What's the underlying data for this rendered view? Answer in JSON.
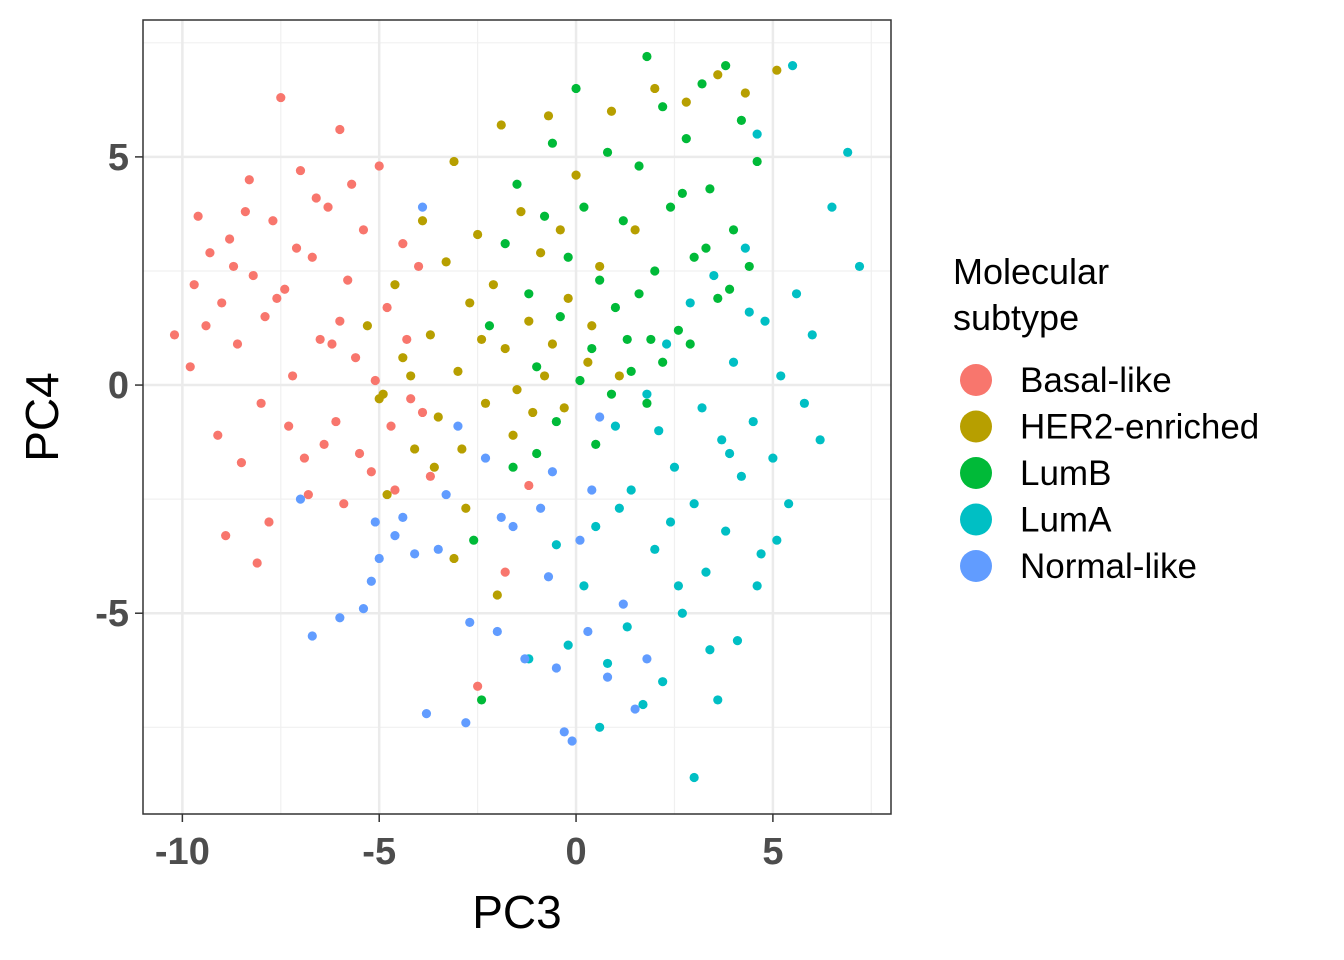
{
  "chart_data": {
    "type": "scatter",
    "title": "",
    "xlabel": "PC3",
    "ylabel": "PC4",
    "xlim": [
      -11.0,
      8.0
    ],
    "ylim": [
      -9.4,
      8.0
    ],
    "x_ticks": [
      -10,
      -5,
      0,
      5
    ],
    "x_tick_labels": [
      "-10",
      "-5",
      "0",
      "5"
    ],
    "y_ticks": [
      -5,
      0,
      5
    ],
    "y_tick_labels": [
      "-5",
      "0",
      "5"
    ],
    "grid": true,
    "legend": {
      "title_lines": [
        "Molecular",
        "subtype"
      ],
      "placement": "right"
    },
    "series": [
      {
        "name": "Basal-like",
        "color": "#F8766D",
        "points": [
          [
            -9.6,
            3.7
          ],
          [
            -9.3,
            2.9
          ],
          [
            -9.0,
            1.8
          ],
          [
            -8.8,
            3.2
          ],
          [
            -8.6,
            0.9
          ],
          [
            -8.3,
            4.5
          ],
          [
            -8.2,
            2.4
          ],
          [
            -8.0,
            -0.4
          ],
          [
            -7.9,
            1.5
          ],
          [
            -7.7,
            3.6
          ],
          [
            -7.5,
            6.3
          ],
          [
            -7.4,
            2.1
          ],
          [
            -7.2,
            0.2
          ],
          [
            -7.0,
            4.7
          ],
          [
            -6.9,
            -1.6
          ],
          [
            -6.7,
            2.8
          ],
          [
            -6.5,
            1.0
          ],
          [
            -6.3,
            3.9
          ],
          [
            -6.1,
            -0.8
          ],
          [
            -6.0,
            5.6
          ],
          [
            -5.8,
            2.3
          ],
          [
            -5.6,
            0.6
          ],
          [
            -5.4,
            3.4
          ],
          [
            -5.2,
            -1.9
          ],
          [
            -5.0,
            4.8
          ],
          [
            -4.8,
            1.7
          ],
          [
            -4.6,
            -2.3
          ],
          [
            -4.4,
            3.1
          ],
          [
            -4.2,
            -0.3
          ],
          [
            -4.0,
            2.6
          ],
          [
            -9.8,
            0.4
          ],
          [
            -9.1,
            -1.1
          ],
          [
            -8.9,
            -3.3
          ],
          [
            -8.5,
            -1.7
          ],
          [
            -8.1,
            -3.9
          ],
          [
            -7.8,
            -3.0
          ],
          [
            -7.3,
            -0.9
          ],
          [
            -6.8,
            -2.4
          ],
          [
            -6.4,
            -1.3
          ],
          [
            -6.2,
            0.9
          ],
          [
            -5.9,
            -2.6
          ],
          [
            -5.5,
            -1.5
          ],
          [
            -5.1,
            0.1
          ],
          [
            -4.7,
            -0.9
          ],
          [
            -4.3,
            1.0
          ],
          [
            -3.9,
            -0.6
          ],
          [
            -3.7,
            -2.0
          ],
          [
            -2.5,
            -6.6
          ],
          [
            -1.8,
            -4.1
          ],
          [
            -1.2,
            -2.2
          ],
          [
            -10.2,
            1.1
          ],
          [
            -9.7,
            2.2
          ],
          [
            -9.4,
            1.3
          ],
          [
            -8.7,
            2.6
          ],
          [
            -8.4,
            3.8
          ],
          [
            -7.6,
            1.9
          ],
          [
            -7.1,
            3.0
          ],
          [
            -6.6,
            4.1
          ],
          [
            -6.0,
            1.4
          ],
          [
            -5.7,
            4.4
          ]
        ]
      },
      {
        "name": "HER2-enriched",
        "color": "#B79F00",
        "points": [
          [
            -5.3,
            1.3
          ],
          [
            -4.9,
            -0.2
          ],
          [
            -4.6,
            2.2
          ],
          [
            -4.4,
            0.6
          ],
          [
            -4.1,
            -1.4
          ],
          [
            -3.9,
            3.6
          ],
          [
            -3.7,
            1.1
          ],
          [
            -3.5,
            -0.7
          ],
          [
            -3.3,
            2.7
          ],
          [
            -3.1,
            4.9
          ],
          [
            -3.0,
            0.3
          ],
          [
            -2.8,
            -2.7
          ],
          [
            -2.7,
            1.8
          ],
          [
            -2.5,
            3.3
          ],
          [
            -2.3,
            -0.4
          ],
          [
            -2.1,
            2.2
          ],
          [
            -1.9,
            5.7
          ],
          [
            -1.8,
            0.8
          ],
          [
            -1.6,
            -1.1
          ],
          [
            -1.4,
            3.8
          ],
          [
            -1.2,
            1.4
          ],
          [
            -1.1,
            -0.6
          ],
          [
            -0.9,
            2.9
          ],
          [
            -0.7,
            5.9
          ],
          [
            -0.6,
            0.9
          ],
          [
            -0.4,
            3.4
          ],
          [
            -0.2,
            1.9
          ],
          [
            0.0,
            4.6
          ],
          [
            0.3,
            0.5
          ],
          [
            0.6,
            2.6
          ],
          [
            0.9,
            6.0
          ],
          [
            1.5,
            3.4
          ],
          [
            2.0,
            6.5
          ],
          [
            2.8,
            6.2
          ],
          [
            3.6,
            6.8
          ],
          [
            4.3,
            6.4
          ],
          [
            5.1,
            6.9
          ],
          [
            -3.1,
            -3.8
          ],
          [
            -2.0,
            -4.6
          ],
          [
            -4.8,
            -2.4
          ],
          [
            -5.0,
            -0.3
          ],
          [
            -4.2,
            0.2
          ],
          [
            -3.6,
            -1.8
          ],
          [
            -2.9,
            -1.4
          ],
          [
            -2.4,
            1.0
          ],
          [
            -1.5,
            -0.1
          ],
          [
            -0.8,
            0.2
          ],
          [
            -0.3,
            -0.5
          ],
          [
            0.4,
            1.3
          ],
          [
            1.1,
            0.2
          ]
        ]
      },
      {
        "name": "LumB",
        "color": "#00BA38",
        "points": [
          [
            -2.2,
            1.3
          ],
          [
            -1.8,
            3.1
          ],
          [
            -1.5,
            4.4
          ],
          [
            -1.2,
            2.0
          ],
          [
            -1.0,
            0.4
          ],
          [
            -0.8,
            3.7
          ],
          [
            -0.6,
            5.3
          ],
          [
            -0.4,
            1.5
          ],
          [
            -0.2,
            2.8
          ],
          [
            0.0,
            6.5
          ],
          [
            0.2,
            3.9
          ],
          [
            0.4,
            0.8
          ],
          [
            0.6,
            2.3
          ],
          [
            0.8,
            5.1
          ],
          [
            1.0,
            1.7
          ],
          [
            1.2,
            3.6
          ],
          [
            1.4,
            0.3
          ],
          [
            1.6,
            4.8
          ],
          [
            1.8,
            7.2
          ],
          [
            2.0,
            2.5
          ],
          [
            2.2,
            6.1
          ],
          [
            2.4,
            3.9
          ],
          [
            2.6,
            1.2
          ],
          [
            2.8,
            5.4
          ],
          [
            3.0,
            2.8
          ],
          [
            3.2,
            6.6
          ],
          [
            3.4,
            4.3
          ],
          [
            3.6,
            1.9
          ],
          [
            3.8,
            7.0
          ],
          [
            4.0,
            3.4
          ],
          [
            4.2,
            5.8
          ],
          [
            4.4,
            2.6
          ],
          [
            4.6,
            4.9
          ],
          [
            2.2,
            0.5
          ],
          [
            1.8,
            -0.4
          ],
          [
            1.3,
            1.0
          ],
          [
            0.9,
            -0.2
          ],
          [
            3.3,
            3.0
          ],
          [
            2.7,
            4.2
          ],
          [
            1.6,
            2.0
          ],
          [
            -1.6,
            -1.8
          ],
          [
            -0.5,
            -0.8
          ],
          [
            0.5,
            -1.3
          ],
          [
            -2.6,
            -3.4
          ],
          [
            -2.4,
            -6.9
          ],
          [
            -1.0,
            -1.5
          ],
          [
            0.1,
            0.1
          ],
          [
            1.9,
            1.0
          ],
          [
            2.9,
            0.9
          ],
          [
            3.9,
            2.1
          ]
        ]
      },
      {
        "name": "LumA",
        "color": "#00BFC4",
        "points": [
          [
            1.0,
            -0.9
          ],
          [
            1.4,
            -2.3
          ],
          [
            1.8,
            -0.2
          ],
          [
            2.0,
            -3.6
          ],
          [
            2.3,
            0.9
          ],
          [
            2.5,
            -1.8
          ],
          [
            2.7,
            -5.0
          ],
          [
            2.9,
            1.8
          ],
          [
            3.0,
            -2.6
          ],
          [
            3.2,
            -0.5
          ],
          [
            3.3,
            -4.1
          ],
          [
            3.5,
            2.4
          ],
          [
            3.7,
            -1.2
          ],
          [
            3.8,
            -3.2
          ],
          [
            4.0,
            0.5
          ],
          [
            4.2,
            -2.0
          ],
          [
            4.3,
            3.0
          ],
          [
            4.5,
            -0.8
          ],
          [
            4.7,
            -3.7
          ],
          [
            4.8,
            1.4
          ],
          [
            5.0,
            -1.6
          ],
          [
            5.2,
            0.2
          ],
          [
            5.4,
            -2.6
          ],
          [
            5.6,
            2.0
          ],
          [
            5.8,
            -0.4
          ],
          [
            6.0,
            1.1
          ],
          [
            6.2,
            -1.2
          ],
          [
            6.5,
            3.9
          ],
          [
            6.9,
            5.1
          ],
          [
            7.2,
            2.6
          ],
          [
            0.5,
            -3.1
          ],
          [
            0.2,
            -4.4
          ],
          [
            -0.2,
            -5.7
          ],
          [
            -0.5,
            -3.5
          ],
          [
            0.8,
            -6.1
          ],
          [
            1.3,
            -5.3
          ],
          [
            1.7,
            -7.0
          ],
          [
            2.2,
            -6.5
          ],
          [
            2.6,
            -4.4
          ],
          [
            3.0,
            -8.6
          ],
          [
            3.6,
            -6.9
          ],
          [
            4.1,
            -5.6
          ],
          [
            4.6,
            -4.4
          ],
          [
            5.1,
            -3.4
          ],
          [
            -1.2,
            -6.0
          ],
          [
            0.6,
            -7.5
          ],
          [
            1.1,
            -2.7
          ],
          [
            2.1,
            -1.0
          ],
          [
            3.9,
            -1.5
          ],
          [
            4.4,
            1.6
          ],
          [
            5.5,
            7.0
          ],
          [
            4.6,
            5.5
          ],
          [
            3.4,
            -5.8
          ],
          [
            2.4,
            -3.0
          ]
        ]
      },
      {
        "name": "Normal-like",
        "color": "#619CFF",
        "points": [
          [
            -7.0,
            -2.5
          ],
          [
            -6.7,
            -5.5
          ],
          [
            -6.0,
            -5.1
          ],
          [
            -5.4,
            -4.9
          ],
          [
            -5.2,
            -4.3
          ],
          [
            -5.1,
            -3.0
          ],
          [
            -4.6,
            -3.3
          ],
          [
            -4.1,
            -3.7
          ],
          [
            -3.8,
            -7.2
          ],
          [
            -3.5,
            -3.6
          ],
          [
            -3.3,
            -2.4
          ],
          [
            -2.8,
            -7.4
          ],
          [
            -2.7,
            -5.2
          ],
          [
            -2.3,
            -1.6
          ],
          [
            -2.0,
            -5.4
          ],
          [
            -1.6,
            -3.1
          ],
          [
            -1.3,
            -6.0
          ],
          [
            -0.9,
            -2.7
          ],
          [
            -0.7,
            -4.2
          ],
          [
            -0.5,
            -6.2
          ],
          [
            -0.3,
            -7.6
          ],
          [
            -0.1,
            -7.8
          ],
          [
            0.3,
            -5.4
          ],
          [
            0.4,
            -2.3
          ],
          [
            0.8,
            -6.4
          ],
          [
            1.2,
            -4.8
          ],
          [
            1.5,
            -7.1
          ],
          [
            1.8,
            -6.0
          ],
          [
            -3.0,
            -0.9
          ],
          [
            -3.9,
            3.9
          ],
          [
            -0.6,
            -1.9
          ],
          [
            -1.9,
            -2.9
          ],
          [
            0.1,
            -3.4
          ],
          [
            0.6,
            -0.7
          ],
          [
            -5.0,
            -3.8
          ],
          [
            -4.4,
            -2.9
          ]
        ]
      }
    ]
  }
}
